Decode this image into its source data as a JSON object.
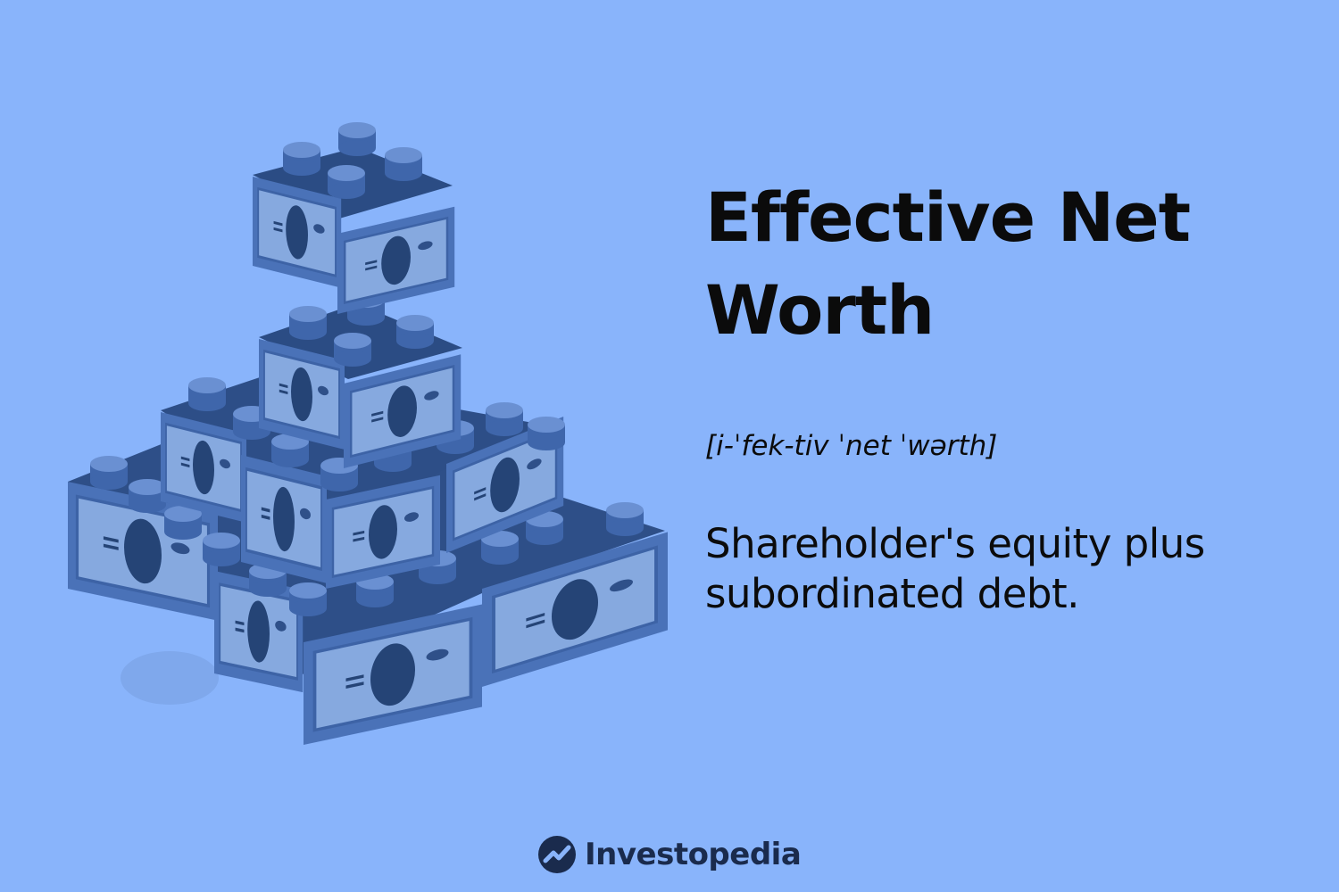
{
  "card": {
    "term": "Effective Net Worth",
    "pronunciation": "[i-ˈfek-tiv ˈnet ˈwərth]",
    "definition": "Shareholder's equity plus subordinated debt."
  },
  "brand": {
    "name": "Investopedia",
    "logo_icon": "investopedia-logo-icon"
  },
  "illustration": {
    "subject": "pyramid-of-money-blocks",
    "colors": {
      "background": "#89b4fb",
      "block_face": "#4a72b8",
      "block_side": "#3a5f9e",
      "block_top": "#33558f",
      "stud": "#5479bd",
      "note": "#86a9df",
      "ink": "#254476"
    }
  }
}
